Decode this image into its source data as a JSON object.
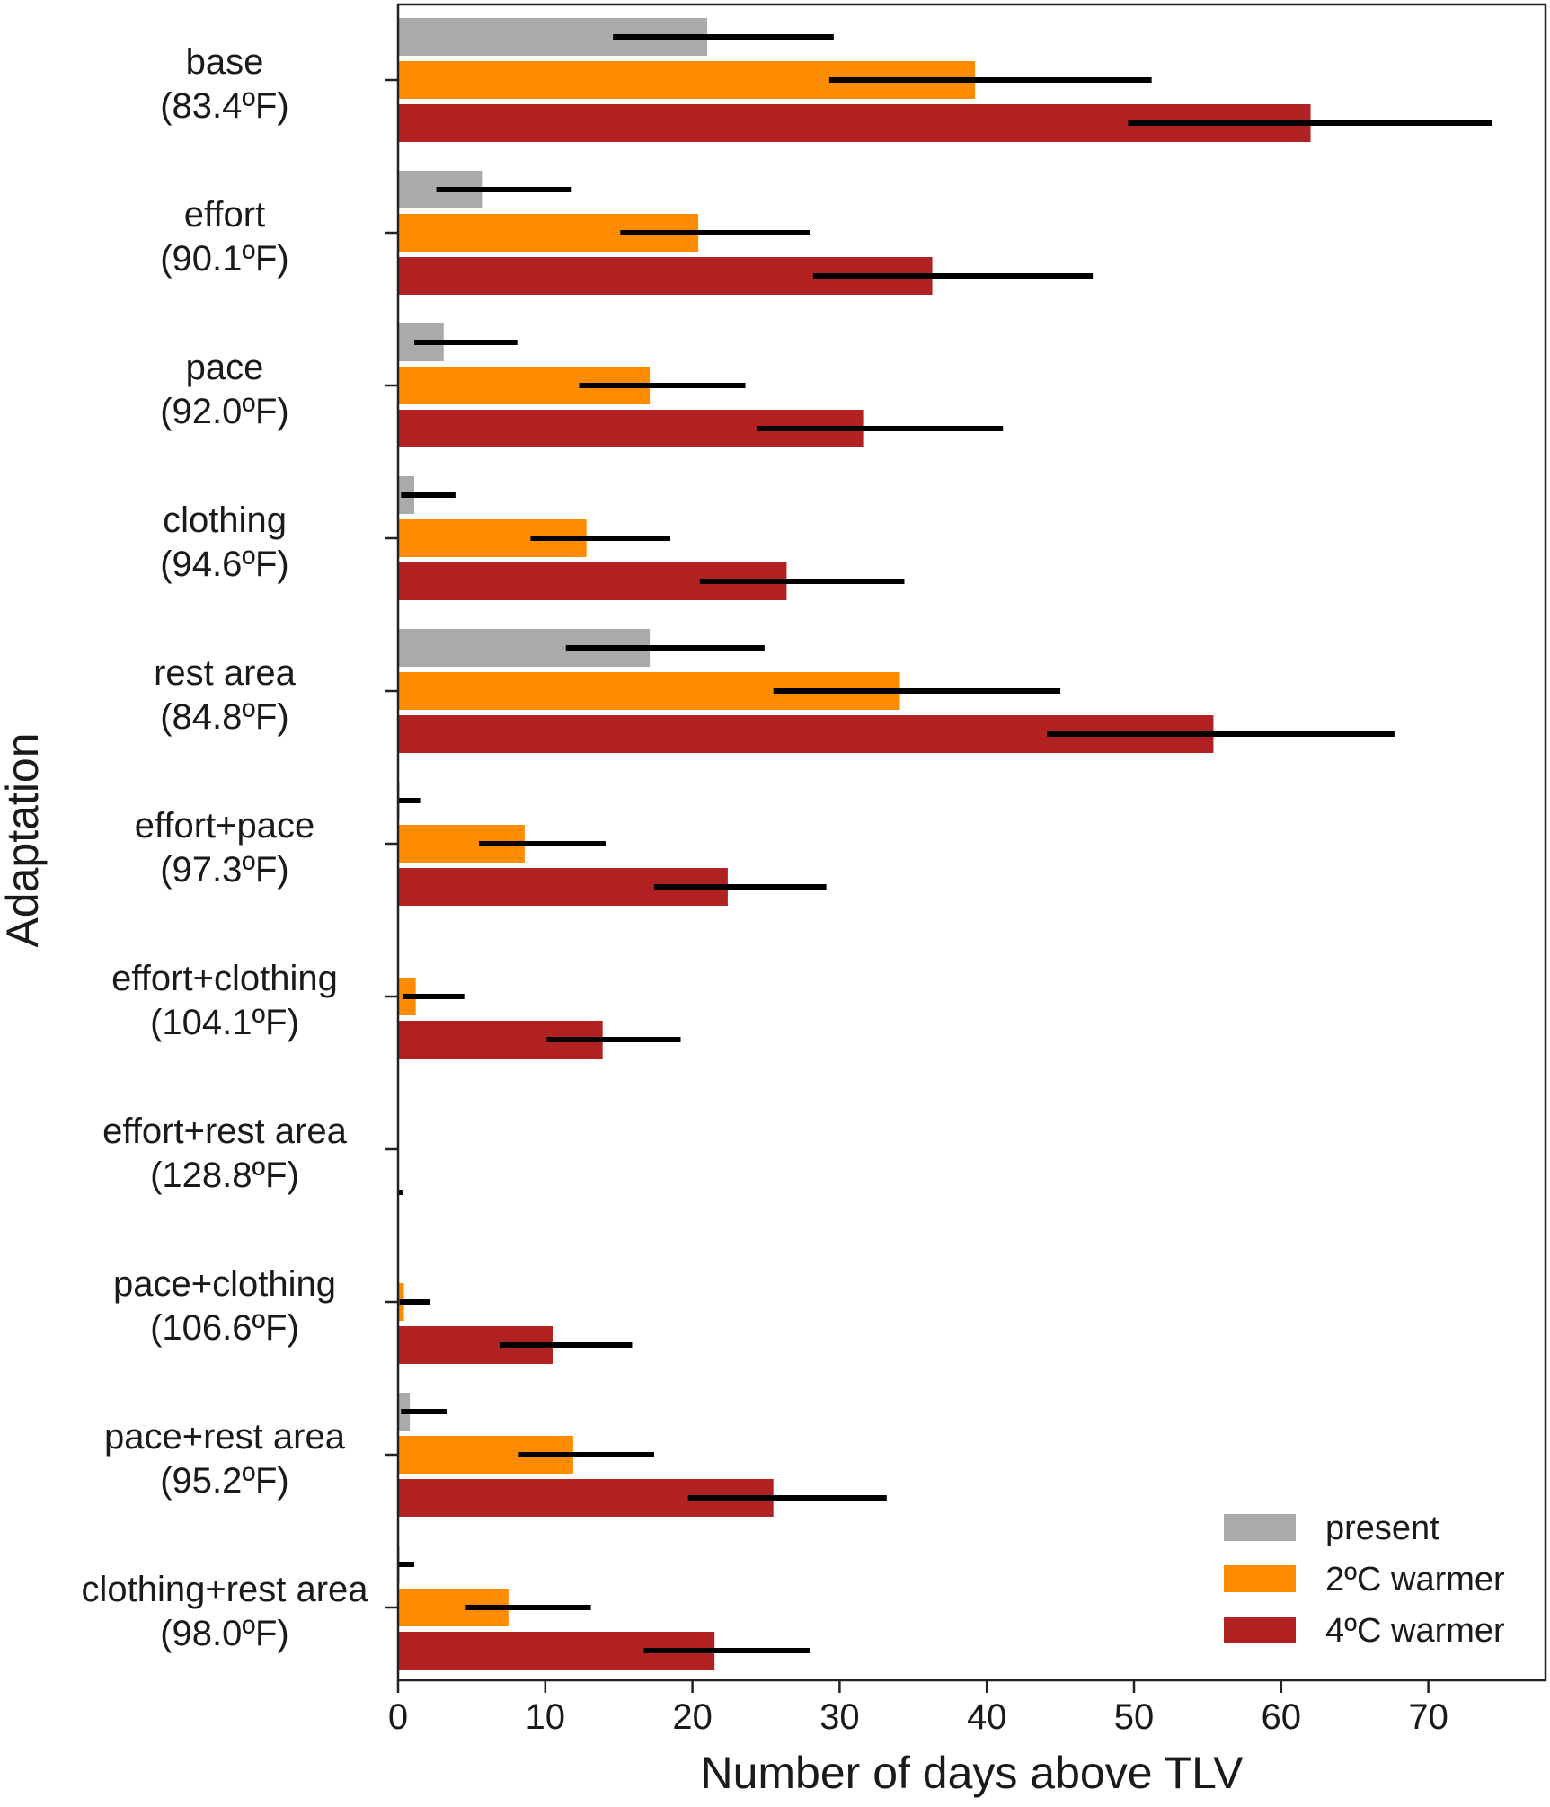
{
  "chart_data": {
    "type": "bar",
    "orientation": "horizontal",
    "xlabel": "Number of days above TLV",
    "ylabel": "Adaptation",
    "xlim": [
      0,
      78
    ],
    "xticks": [
      0,
      10,
      20,
      30,
      40,
      50,
      60,
      70
    ],
    "grid": false,
    "legend_position": "bottom-right",
    "categories": [
      {
        "name": "base",
        "temp": "(83.4ºF)"
      },
      {
        "name": "effort",
        "temp": "(90.1ºF)"
      },
      {
        "name": "pace",
        "temp": "(92.0ºF)"
      },
      {
        "name": "clothing",
        "temp": "(94.6ºF)"
      },
      {
        "name": "rest area",
        "temp": "(84.8ºF)"
      },
      {
        "name": "effort+pace",
        "temp": "(97.3ºF)"
      },
      {
        "name": "effort+clothing",
        "temp": "(104.1ºF)"
      },
      {
        "name": "effort+rest area",
        "temp": "(128.8ºF)"
      },
      {
        "name": "pace+clothing",
        "temp": "(106.6ºF)"
      },
      {
        "name": "pace+rest area",
        "temp": "(95.2ºF)"
      },
      {
        "name": "clothing+rest area",
        "temp": "(98.0ºF)"
      }
    ],
    "series": [
      {
        "name": "present",
        "color": "#aaaaaa",
        "values": [
          21.0,
          5.7,
          3.1,
          1.1,
          17.1,
          0.1,
          0,
          0,
          0,
          0.8,
          0.1
        ],
        "err_low": [
          14.6,
          2.6,
          1.1,
          0.2,
          11.4,
          0,
          0,
          0,
          0,
          0.2,
          0
        ],
        "err_high": [
          29.6,
          11.8,
          8.1,
          3.9,
          24.9,
          1.5,
          0,
          0,
          0,
          3.3,
          1.1
        ]
      },
      {
        "name": "2ºC warmer",
        "color": "#ff8c00",
        "values": [
          39.2,
          20.4,
          17.1,
          12.8,
          34.1,
          8.6,
          1.2,
          0,
          0.4,
          11.9,
          7.5
        ],
        "err_low": [
          29.3,
          15.1,
          12.3,
          9.0,
          25.5,
          5.5,
          0.3,
          0,
          0.1,
          8.2,
          4.6
        ],
        "err_high": [
          51.2,
          28.0,
          23.6,
          18.5,
          45.0,
          14.1,
          4.5,
          0,
          2.2,
          17.4,
          13.1
        ]
      },
      {
        "name": "4ºC warmer",
        "color": "#b22222",
        "values": [
          62.0,
          36.3,
          31.6,
          26.4,
          55.4,
          22.4,
          13.9,
          0,
          10.5,
          25.5,
          21.5
        ],
        "err_low": [
          49.6,
          28.2,
          24.4,
          20.5,
          44.1,
          17.4,
          10.1,
          0,
          6.9,
          19.7,
          16.7
        ],
        "err_high": [
          74.3,
          47.2,
          41.1,
          34.4,
          67.7,
          29.1,
          19.2,
          0.3,
          15.9,
          33.2,
          28.0
        ]
      }
    ]
  }
}
